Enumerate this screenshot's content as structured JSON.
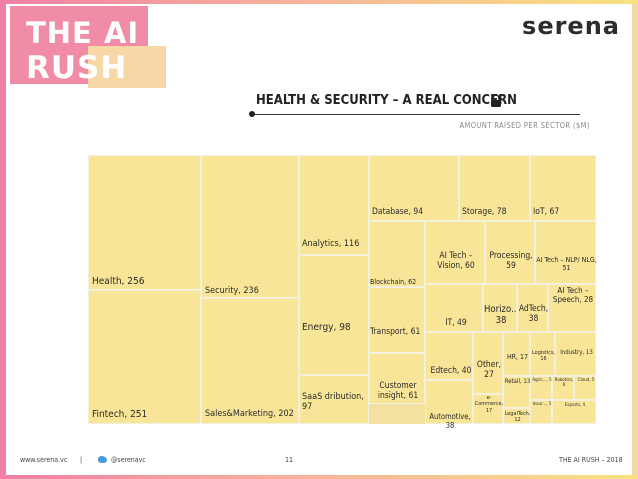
{
  "header": {
    "logo_line1": "THE AI",
    "logo_line2": "RUSH",
    "brand": "serena"
  },
  "title": "HEALTH & SECURITY – A REAL CONCERN",
  "subtitle": "AMOUNT RAISED PER SECTOR ($M)",
  "colors": {
    "tile": "#f9e597",
    "tile_border": "#f3f0e0",
    "pink": "#f18ca6",
    "peach": "#f7d7a6"
  },
  "chart_data": {
    "type": "treemap",
    "title": "HEALTH & SECURITY – A REAL CONCERN",
    "subtitle": "AMOUNT RAISED PER SECTOR ($M)",
    "tiles": [
      {
        "label": "Health, 256",
        "value": 256
      },
      {
        "label": "Fintech, 251",
        "value": 251
      },
      {
        "label": "Security, 236",
        "value": 236
      },
      {
        "label": "Sales&Marketing, 202",
        "value": 202
      },
      {
        "label": "Analytics, 116",
        "value": 116
      },
      {
        "label": "Energy, 98",
        "value": 98
      },
      {
        "label": "SaaS dribution, 97",
        "value": 97
      },
      {
        "label": "Database, 94",
        "value": 94
      },
      {
        "label": "Storage, 78",
        "value": 78
      },
      {
        "label": "IoT, 67",
        "value": 67
      },
      {
        "label": "Blockchain, 62",
        "value": 62
      },
      {
        "label": "Transport, 61",
        "value": 61
      },
      {
        "label": "Customer insight, 61",
        "value": 61
      },
      {
        "label": "AI Tech – Vision, 60",
        "value": 60
      },
      {
        "label": "Processing, 59",
        "value": 59
      },
      {
        "label": "AI Tech – NLP/ NLG, 51",
        "value": 51
      },
      {
        "label": "IT, 49",
        "value": 49
      },
      {
        "label": "Horizo... 38",
        "value": 38
      },
      {
        "label": "AdTech, 38",
        "value": 38
      },
      {
        "label": "AI Tech – Speech, 28",
        "value": 28
      },
      {
        "label": "Edtech, 40",
        "value": 40
      },
      {
        "label": "Other, 27",
        "value": 27
      },
      {
        "label": "HR, 17",
        "value": 17
      },
      {
        "label": "Logistics, 16",
        "value": 16
      },
      {
        "label": "Industry, 13",
        "value": 13
      },
      {
        "label": "Automotive, 38",
        "value": 38
      },
      {
        "label": "e-Commerce, 17",
        "value": 17
      },
      {
        "label": "Retail, 13",
        "value": 13
      },
      {
        "label": "LegalTech, 12",
        "value": 12
      },
      {
        "label": "Agric..., 5",
        "value": 5
      },
      {
        "label": "Robotics, 6",
        "value": 6
      },
      {
        "label": "Cloud, 5",
        "value": 5
      },
      {
        "label": "Insur..., 5",
        "value": 5
      },
      {
        "label": "Esports, 4",
        "value": 4
      }
    ]
  },
  "footer": {
    "website": "www.serena.vc",
    "separator": "|",
    "twitter": "@serenavc",
    "page": "11",
    "right": "THE AI RUSH – 2018"
  }
}
